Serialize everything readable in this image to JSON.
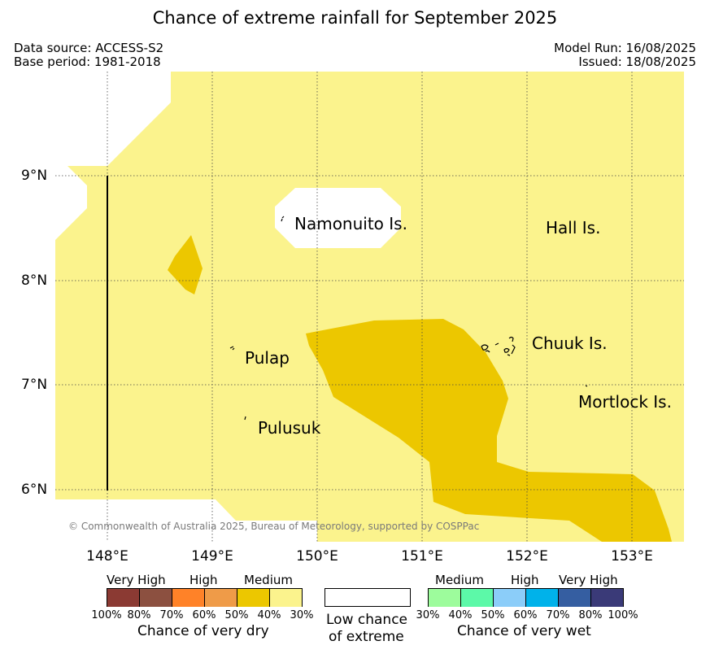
{
  "title": "Chance of extreme rainfall for September 2025",
  "meta": {
    "data_source": "Data source: ACCESS-S2",
    "base_period": "Base period: 1981-2018",
    "model_run": "Model Run: 16/08/2025",
    "issued": "Issued: 18/08/2025"
  },
  "map": {
    "background_color": "#fbf38d",
    "x_ticks": [
      "148°E",
      "149°E",
      "150°E",
      "151°E",
      "152°E",
      "153°E"
    ],
    "y_ticks": [
      "9°N",
      "8°N",
      "7°N",
      "6°N"
    ],
    "places": {
      "namonuito": "Namonuito Is.",
      "hall": "Hall Is.",
      "pulap": "Pulap",
      "chuuk": "Chuuk Is.",
      "pulusuk": "Pulusuk",
      "mortlock": "Mortlock Is."
    },
    "copyright": "© Commonwealth of Australia 2025, Bureau of Meteorology, supported by COSPPac"
  },
  "legend": {
    "dry": {
      "heads": [
        "Very High",
        "High",
        "Medium"
      ],
      "colors": [
        "#8b3a33",
        "#8c5040",
        "#ff8228",
        "#ef9b48",
        "#ecc700",
        "#fbf38d"
      ],
      "percents": [
        "100%",
        "80%",
        "70%",
        "60%",
        "50%",
        "40%",
        "30%"
      ],
      "caption": "Chance of very dry"
    },
    "low": {
      "caption_line1": "Low chance",
      "caption_line2": "of extreme",
      "color": "#ffffff"
    },
    "wet": {
      "heads": [
        "Medium",
        "High",
        "Very High"
      ],
      "colors": [
        "#9dfc9c",
        "#5cf9a8",
        "#8bcdf9",
        "#00b2ea",
        "#355ea1",
        "#3a3a78"
      ],
      "percents": [
        "30%",
        "40%",
        "50%",
        "60%",
        "70%",
        "80%",
        "100%"
      ],
      "caption": "Chance of very wet"
    }
  }
}
